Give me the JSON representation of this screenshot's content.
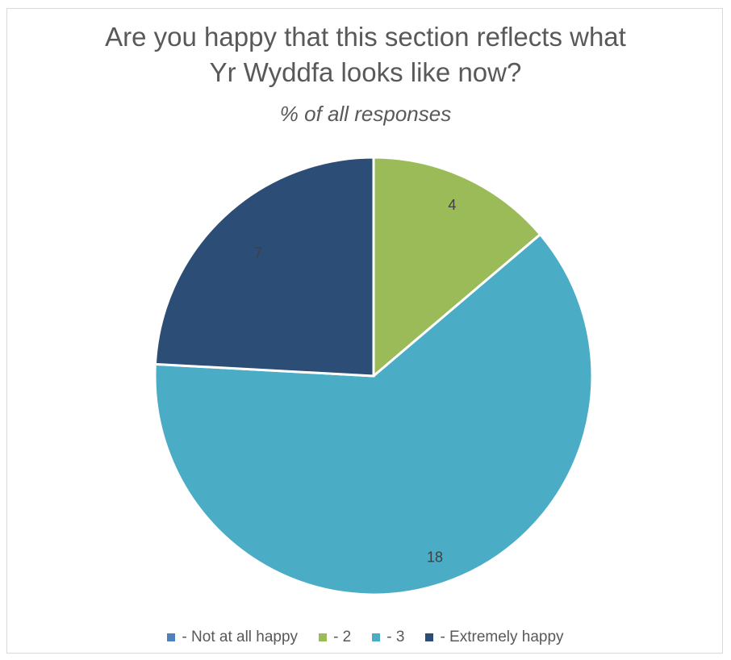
{
  "chart_data": {
    "type": "pie",
    "title": "Are you happy that this section reflects what\nYr Wyddfa looks like now?",
    "subtitle": "% of all responses",
    "categories": [
      "- Not at all happy",
      "- 2",
      "- 3",
      "- Extremely happy"
    ],
    "values": [
      0,
      4,
      18,
      7
    ],
    "colors": [
      "#4f81bd",
      "#9bbb59",
      "#4bacc6",
      "#2c4d75"
    ],
    "legend_position": "bottom"
  }
}
